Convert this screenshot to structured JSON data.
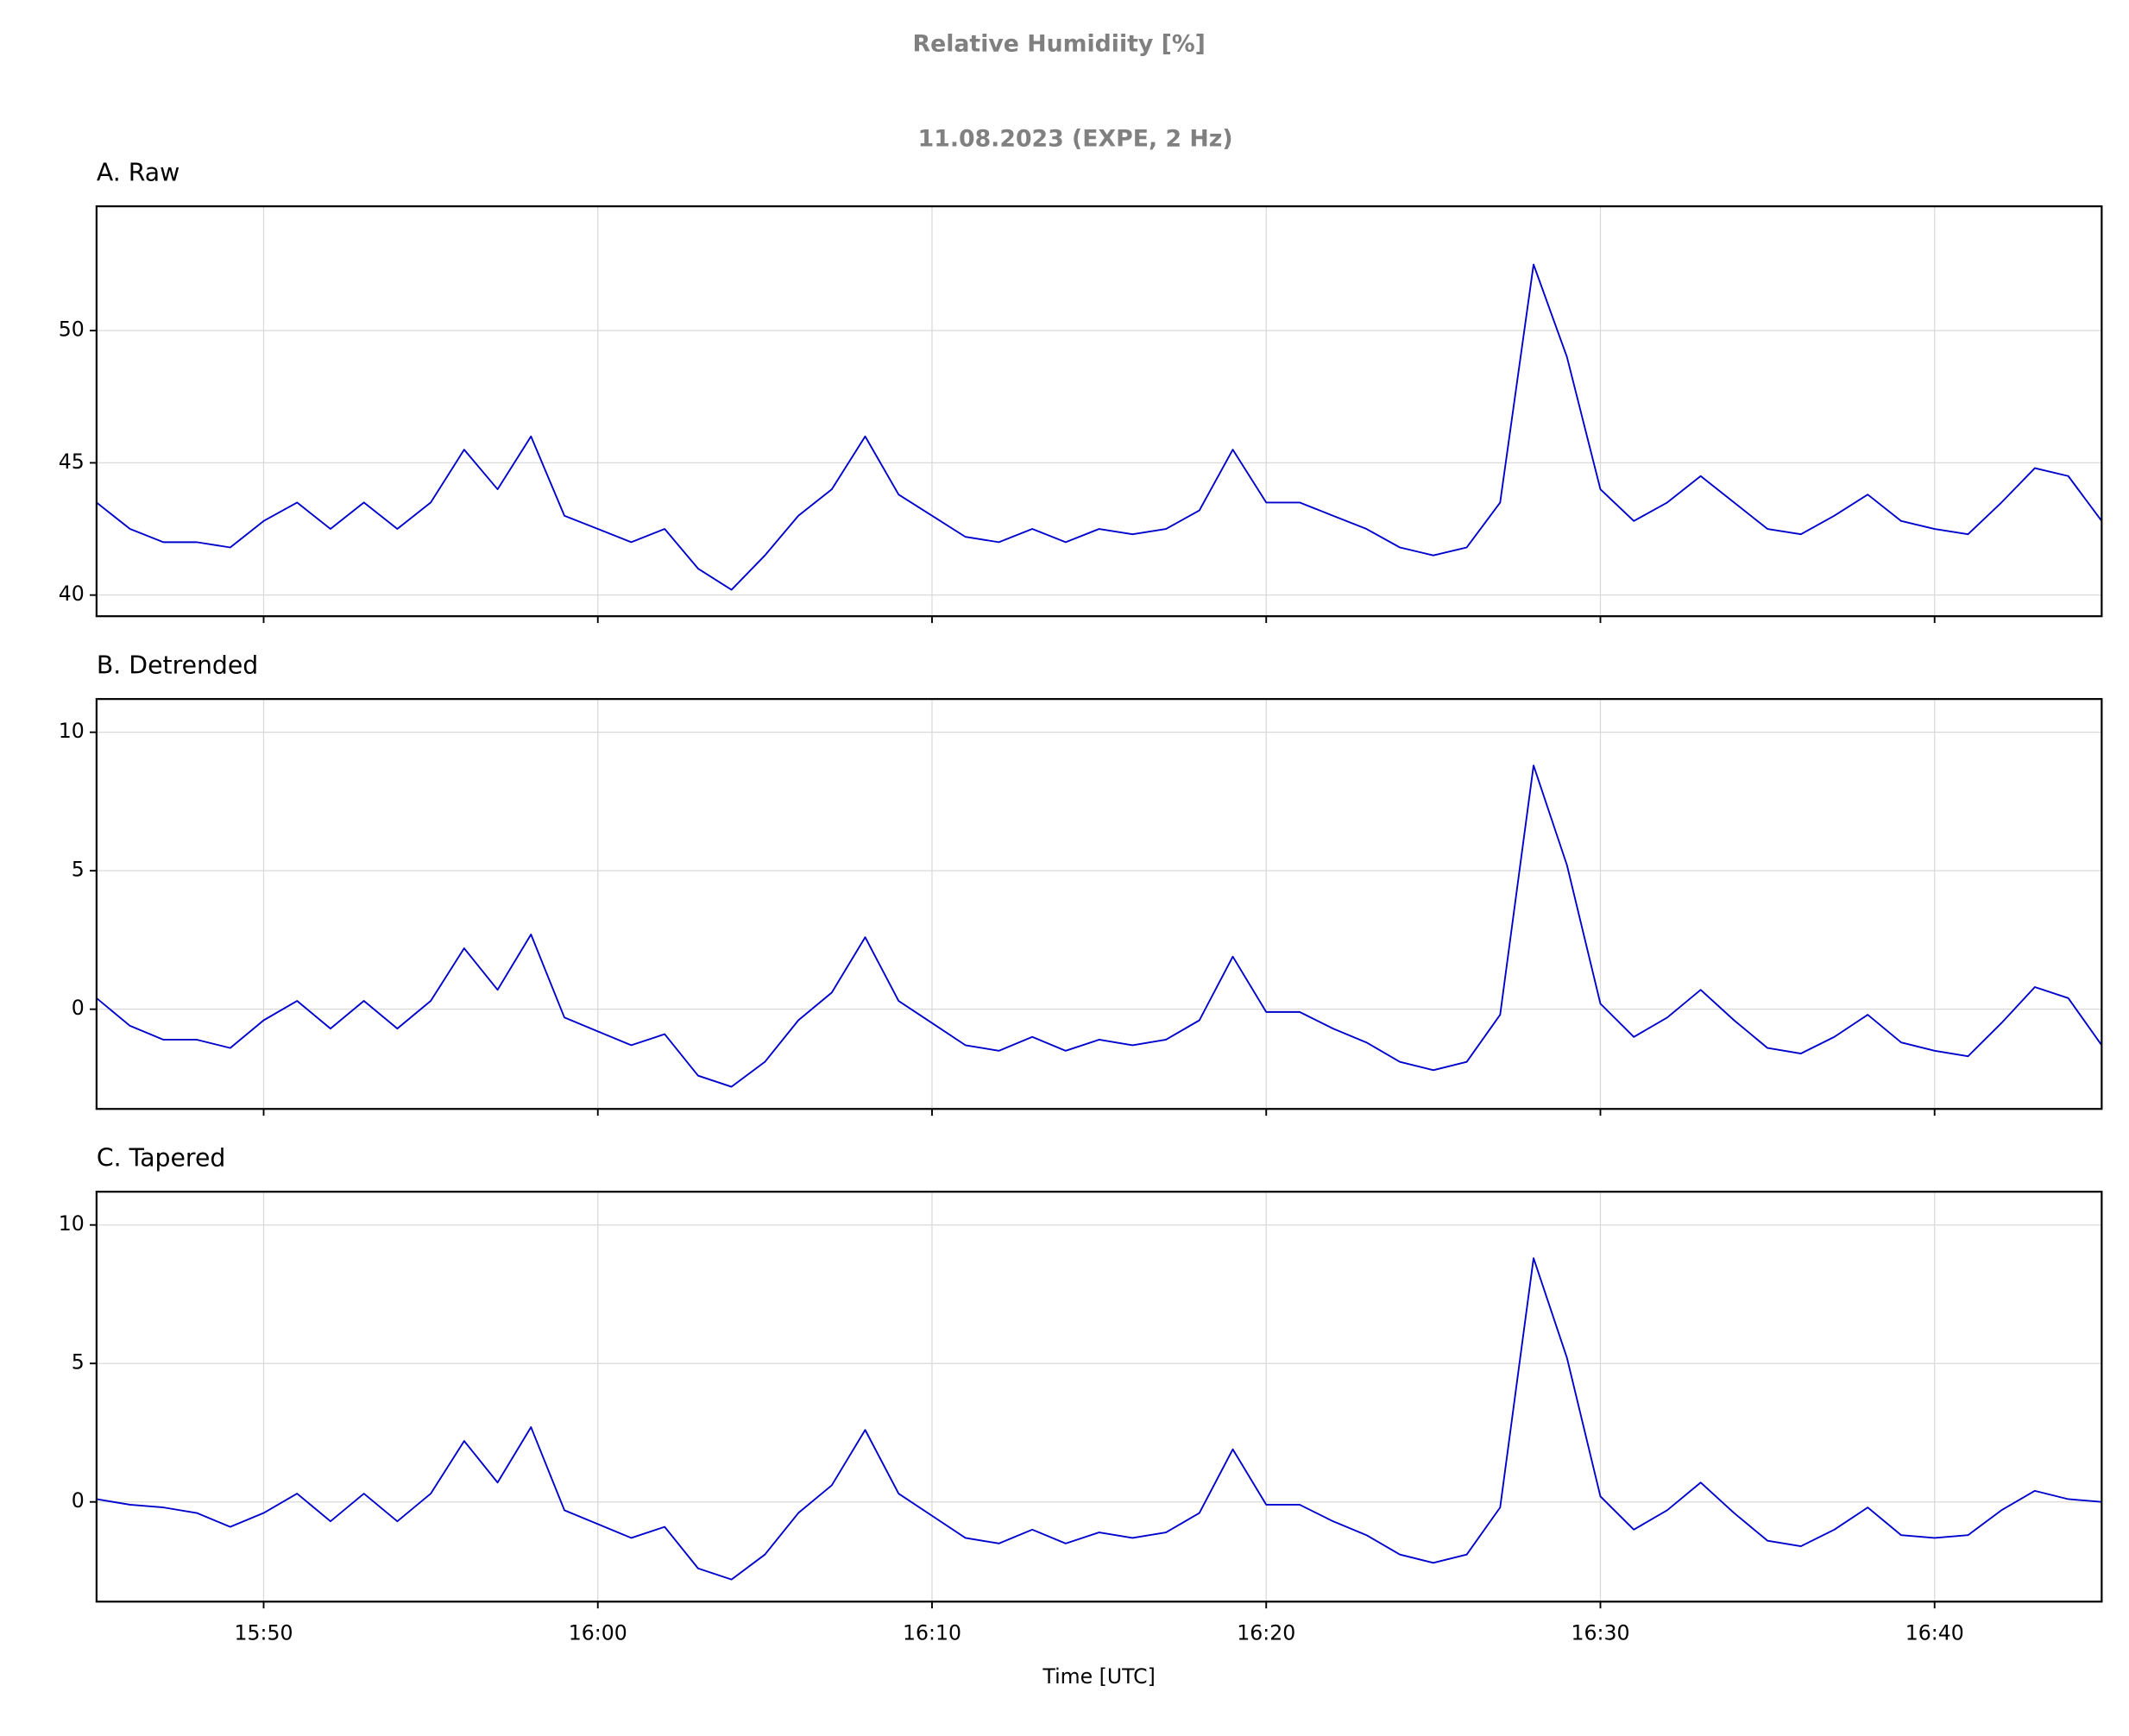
{
  "title": "Relative Humidiity [%]",
  "subtitle": "11.08.2023 (EXPE, 2 Hz)",
  "xlabel": "Time [UTC]",
  "chart_data": [
    {
      "type": "line",
      "title": "A. Raw",
      "color": "#0000cd",
      "grid": true,
      "x": [
        "15:45",
        "15:46",
        "15:47",
        "15:48",
        "15:49",
        "15:50",
        "15:51",
        "15:52",
        "15:53",
        "15:54",
        "15:55",
        "15:56",
        "15:57",
        "15:58",
        "15:59",
        "16:00",
        "16:01",
        "16:02",
        "16:03",
        "16:04",
        "16:05",
        "16:06",
        "16:07",
        "16:08",
        "16:09",
        "16:10",
        "16:11",
        "16:12",
        "16:13",
        "16:14",
        "16:15",
        "16:16",
        "16:17",
        "16:18",
        "16:19",
        "16:20",
        "16:21",
        "16:22",
        "16:23",
        "16:24",
        "16:25",
        "16:26",
        "16:27",
        "16:28",
        "16:29",
        "16:30",
        "16:31",
        "16:32",
        "16:33",
        "16:34",
        "16:35",
        "16:36",
        "16:37",
        "16:38",
        "16:39",
        "16:40",
        "16:41",
        "16:42",
        "16:43",
        "16:44",
        "16:45"
      ],
      "values": [
        43.5,
        42.5,
        42.0,
        42.0,
        41.8,
        42.8,
        43.5,
        42.5,
        43.5,
        42.5,
        43.5,
        45.5,
        44.0,
        46.0,
        43.0,
        42.5,
        42.0,
        42.5,
        41.0,
        40.2,
        41.5,
        43.0,
        44.0,
        46.0,
        43.8,
        43.0,
        42.2,
        42.0,
        42.5,
        42.0,
        42.5,
        42.3,
        42.5,
        43.2,
        45.5,
        43.5,
        43.5,
        43.0,
        42.5,
        41.8,
        41.5,
        41.8,
        43.5,
        52.5,
        49.0,
        44.0,
        42.8,
        43.5,
        44.5,
        43.5,
        42.5,
        42.3,
        43.0,
        43.8,
        42.8,
        42.5,
        42.3,
        43.5,
        44.8,
        44.5,
        42.8
      ],
      "xlim": [
        "15:45",
        "16:45"
      ],
      "xticks": [
        "15:50",
        "16:00",
        "16:10",
        "16:20",
        "16:30",
        "16:40"
      ],
      "ylim": [
        39.2,
        54.7
      ],
      "yticks": [
        40,
        45,
        50
      ]
    },
    {
      "type": "line",
      "title": "B. Detrended",
      "color": "#0000cd",
      "grid": true,
      "x": [
        "15:45",
        "15:46",
        "15:47",
        "15:48",
        "15:49",
        "15:50",
        "15:51",
        "15:52",
        "15:53",
        "15:54",
        "15:55",
        "15:56",
        "15:57",
        "15:58",
        "15:59",
        "16:00",
        "16:01",
        "16:02",
        "16:03",
        "16:04",
        "16:05",
        "16:06",
        "16:07",
        "16:08",
        "16:09",
        "16:10",
        "16:11",
        "16:12",
        "16:13",
        "16:14",
        "16:15",
        "16:16",
        "16:17",
        "16:18",
        "16:19",
        "16:20",
        "16:21",
        "16:22",
        "16:23",
        "16:24",
        "16:25",
        "16:26",
        "16:27",
        "16:28",
        "16:29",
        "16:30",
        "16:31",
        "16:32",
        "16:33",
        "16:34",
        "16:35",
        "16:36",
        "16:37",
        "16:38",
        "16:39",
        "16:40",
        "16:41",
        "16:42",
        "16:43",
        "16:44",
        "16:45"
      ],
      "values": [
        0.4,
        -0.6,
        -1.1,
        -1.1,
        -1.4,
        -0.4,
        0.3,
        -0.7,
        0.3,
        -0.7,
        0.3,
        2.2,
        0.7,
        2.7,
        -0.3,
        -0.8,
        -1.3,
        -0.9,
        -2.4,
        -2.8,
        -1.9,
        -0.4,
        0.6,
        2.6,
        0.3,
        -0.5,
        -1.3,
        -1.5,
        -1.0,
        -1.5,
        -1.1,
        -1.3,
        -1.1,
        -0.4,
        1.9,
        -0.1,
        -0.1,
        -0.7,
        -1.2,
        -1.9,
        -2.2,
        -1.9,
        -0.2,
        8.8,
        5.2,
        0.2,
        -1.0,
        -0.3,
        0.7,
        -0.4,
        -1.4,
        -1.6,
        -1.0,
        -0.2,
        -1.2,
        -1.5,
        -1.7,
        -0.5,
        0.8,
        0.4,
        -1.3
      ],
      "xlim": [
        "15:45",
        "16:45"
      ],
      "xticks": [
        "15:50",
        "16:00",
        "16:10",
        "16:20",
        "16:30",
        "16:40"
      ],
      "ylim": [
        -3.6,
        11.2
      ],
      "yticks": [
        0,
        5,
        10
      ]
    },
    {
      "type": "line",
      "title": "C. Tapered",
      "color": "#0000cd",
      "grid": true,
      "x": [
        "15:45",
        "15:46",
        "15:47",
        "15:48",
        "15:49",
        "15:50",
        "15:51",
        "15:52",
        "15:53",
        "15:54",
        "15:55",
        "15:56",
        "15:57",
        "15:58",
        "15:59",
        "16:00",
        "16:01",
        "16:02",
        "16:03",
        "16:04",
        "16:05",
        "16:06",
        "16:07",
        "16:08",
        "16:09",
        "16:10",
        "16:11",
        "16:12",
        "16:13",
        "16:14",
        "16:15",
        "16:16",
        "16:17",
        "16:18",
        "16:19",
        "16:20",
        "16:21",
        "16:22",
        "16:23",
        "16:24",
        "16:25",
        "16:26",
        "16:27",
        "16:28",
        "16:29",
        "16:30",
        "16:31",
        "16:32",
        "16:33",
        "16:34",
        "16:35",
        "16:36",
        "16:37",
        "16:38",
        "16:39",
        "16:40",
        "16:41",
        "16:42",
        "16:43",
        "16:44",
        "16:45"
      ],
      "values": [
        0.1,
        -0.1,
        -0.2,
        -0.4,
        -0.9,
        -0.4,
        0.3,
        -0.7,
        0.3,
        -0.7,
        0.3,
        2.2,
        0.7,
        2.7,
        -0.3,
        -0.8,
        -1.3,
        -0.9,
        -2.4,
        -2.8,
        -1.9,
        -0.4,
        0.6,
        2.6,
        0.3,
        -0.5,
        -1.3,
        -1.5,
        -1.0,
        -1.5,
        -1.1,
        -1.3,
        -1.1,
        -0.4,
        1.9,
        -0.1,
        -0.1,
        -0.7,
        -1.2,
        -1.9,
        -2.2,
        -1.9,
        -0.2,
        8.8,
        5.2,
        0.2,
        -1.0,
        -0.3,
        0.7,
        -0.4,
        -1.4,
        -1.6,
        -1.0,
        -0.2,
        -1.2,
        -1.3,
        -1.2,
        -0.3,
        0.4,
        0.1,
        0.0
      ],
      "xlim": [
        "15:45",
        "16:45"
      ],
      "xticks": [
        "15:50",
        "16:00",
        "16:10",
        "16:20",
        "16:30",
        "16:40"
      ],
      "ylim": [
        -3.6,
        11.2
      ],
      "yticks": [
        0,
        5,
        10
      ]
    }
  ]
}
